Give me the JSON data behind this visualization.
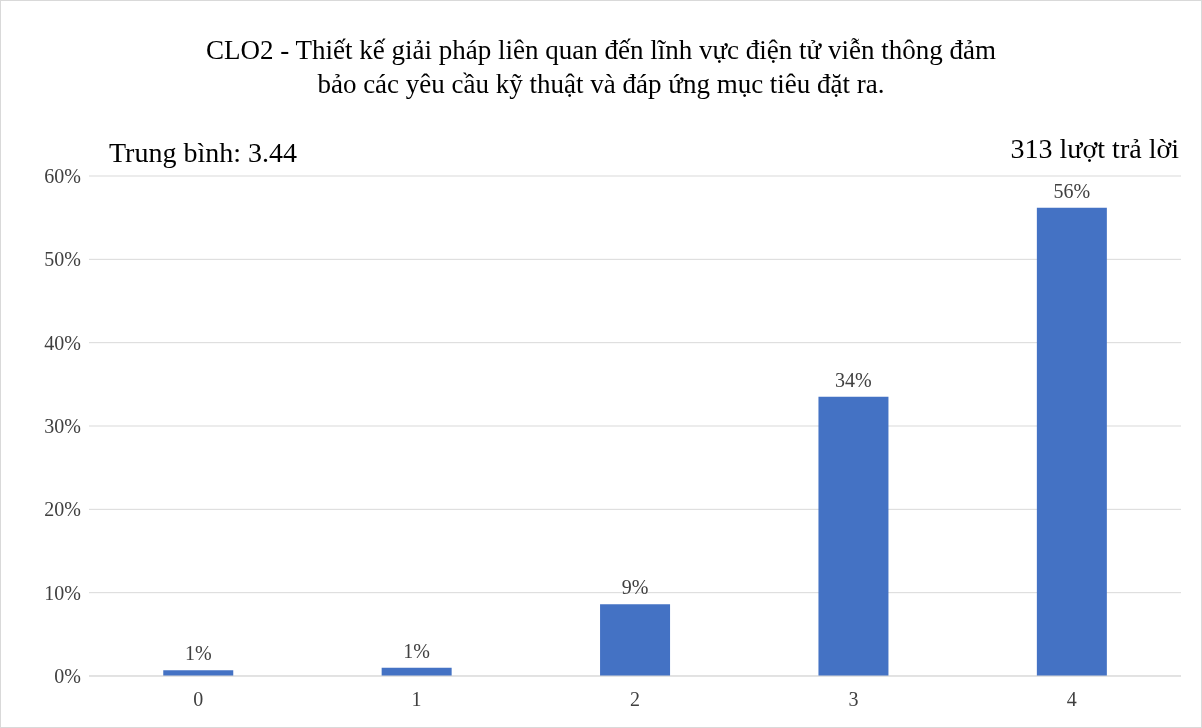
{
  "chart_data": {
    "type": "bar",
    "title": "CLO2 - Thiết kế giải pháp liên quan đến lĩnh vực điện tử viễn thông đảm bảo các yêu cầu kỹ thuật và đáp ứng mục tiêu đặt ra.",
    "categories": [
      "0",
      "1",
      "2",
      "3",
      "4"
    ],
    "values": [
      0.7,
      1.0,
      8.6,
      33.5,
      56.2
    ],
    "value_labels": [
      "1%",
      "1%",
      "9%",
      "34%",
      "56%"
    ],
    "color": "#4472c4",
    "ylim": [
      0,
      60
    ],
    "yticks": [
      {
        "value": 0,
        "label": "0%"
      },
      {
        "value": 10,
        "label": "10%"
      },
      {
        "value": 20,
        "label": "20%"
      },
      {
        "value": 30,
        "label": "30%"
      },
      {
        "value": 40,
        "label": "40%"
      },
      {
        "value": 50,
        "label": "50%"
      },
      {
        "value": 60,
        "label": "60%"
      }
    ],
    "grid": "y",
    "annotations": [
      "Trung bình: 3.44",
      "313 lượt trả lời"
    ]
  }
}
